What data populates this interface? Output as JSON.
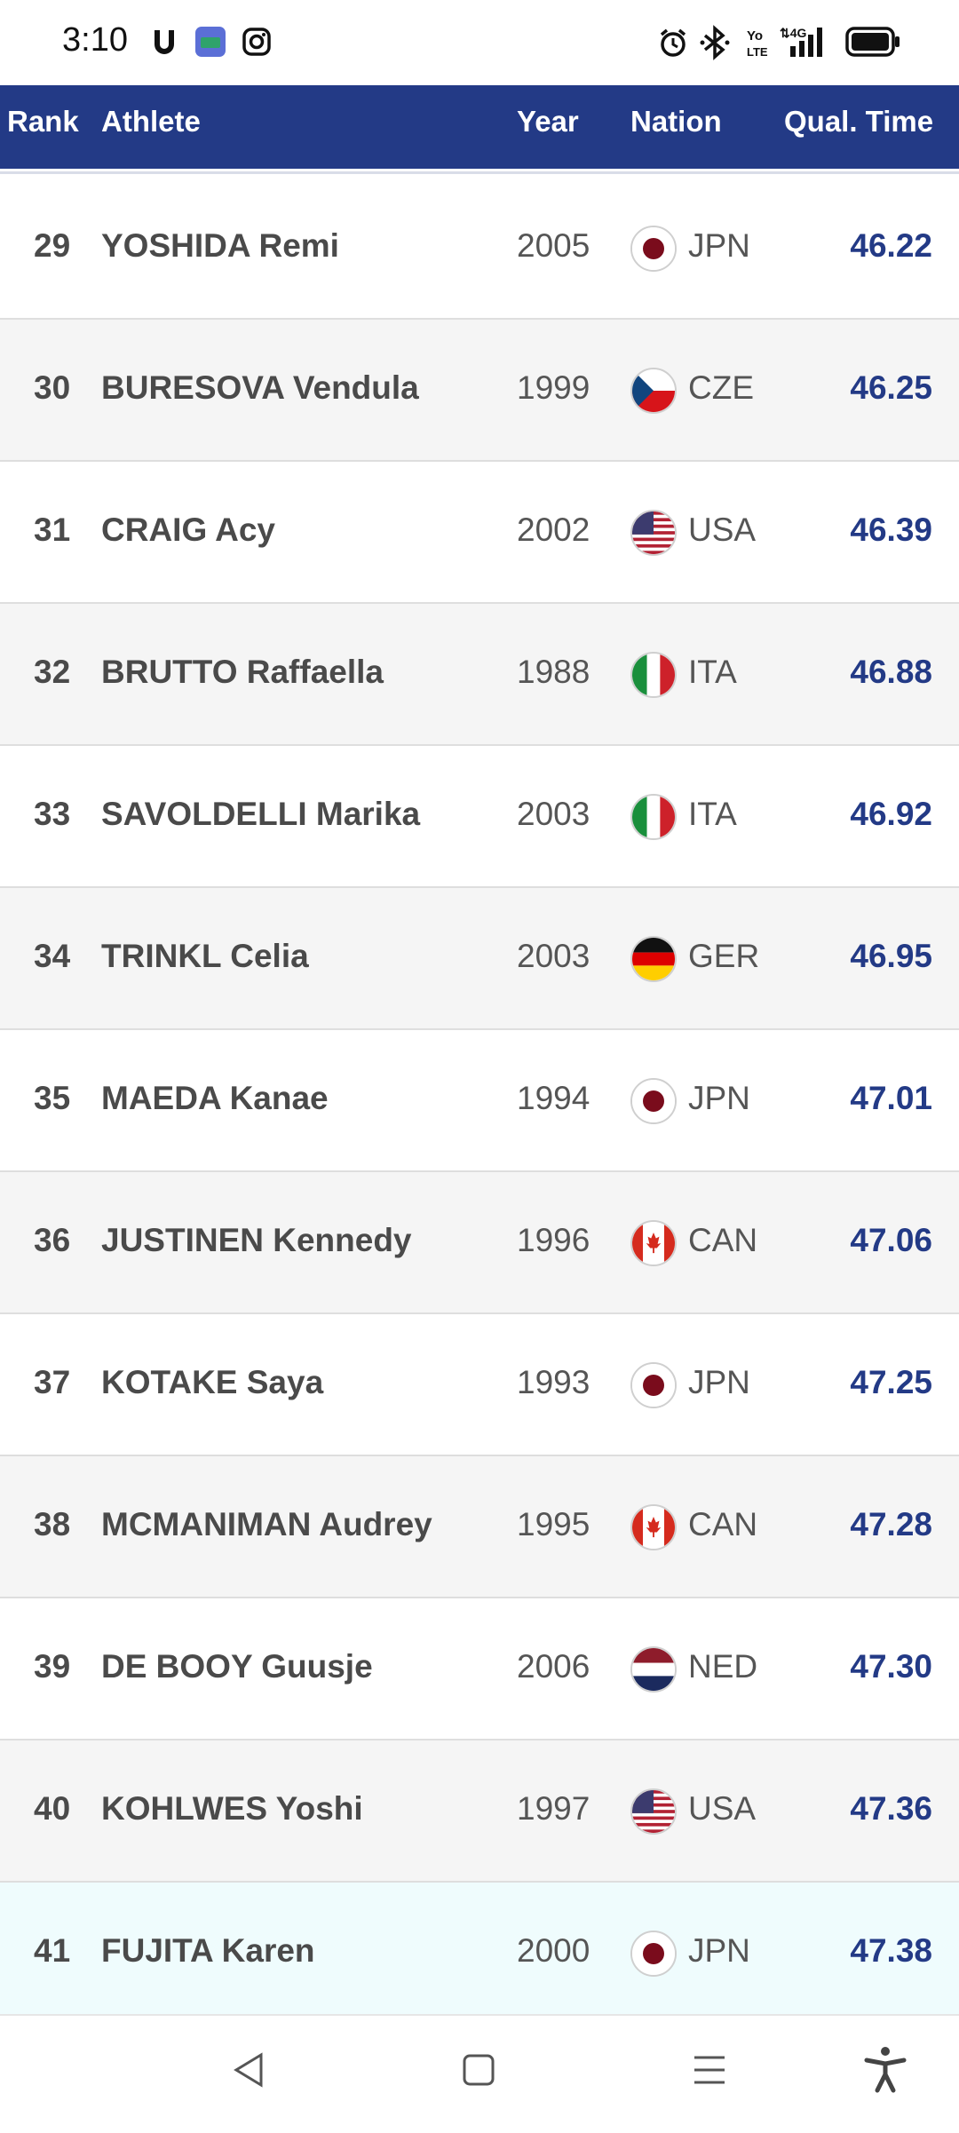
{
  "status_bar": {
    "time": "3:10"
  },
  "table": {
    "headers": {
      "rank": "Rank",
      "athlete": "Athlete",
      "year": "Year",
      "nation": "Nation",
      "qual_time": "Qual. Time"
    },
    "rows": [
      {
        "rank": "29",
        "athlete": "YOSHIDA Remi",
        "year": "2005",
        "nation": "JPN",
        "time": "46.22"
      },
      {
        "rank": "30",
        "athlete": "BURESOVA Vendula",
        "year": "1999",
        "nation": "CZE",
        "time": "46.25"
      },
      {
        "rank": "31",
        "athlete": "CRAIG Acy",
        "year": "2002",
        "nation": "USA",
        "time": "46.39"
      },
      {
        "rank": "32",
        "athlete": "BRUTTO Raffaella",
        "year": "1988",
        "nation": "ITA",
        "time": "46.88"
      },
      {
        "rank": "33",
        "athlete": "SAVOLDELLI Marika",
        "year": "2003",
        "nation": "ITA",
        "time": "46.92"
      },
      {
        "rank": "34",
        "athlete": "TRINKL Celia",
        "year": "2003",
        "nation": "GER",
        "time": "46.95"
      },
      {
        "rank": "35",
        "athlete": "MAEDA Kanae",
        "year": "1994",
        "nation": "JPN",
        "time": "47.01"
      },
      {
        "rank": "36",
        "athlete": "JUSTINEN Kennedy",
        "year": "1996",
        "nation": "CAN",
        "time": "47.06"
      },
      {
        "rank": "37",
        "athlete": "KOTAKE Saya",
        "year": "1993",
        "nation": "JPN",
        "time": "47.25"
      },
      {
        "rank": "38",
        "athlete": "MCMANIMAN Audrey",
        "year": "1995",
        "nation": "CAN",
        "time": "47.28"
      },
      {
        "rank": "39",
        "athlete": "DE BOOY Guusje",
        "year": "2006",
        "nation": "NED",
        "time": "47.30"
      },
      {
        "rank": "40",
        "athlete": "KOHLWES Yoshi",
        "year": "1997",
        "nation": "USA",
        "time": "47.36"
      },
      {
        "rank": "41",
        "athlete": "FUJITA Karen",
        "year": "2000",
        "nation": "JPN",
        "time": "47.38"
      }
    ]
  },
  "colors": {
    "header_bg": "#233a86",
    "time_text": "#233a86",
    "highlight_row": "#effcfd"
  },
  "nav_bar": {
    "icons": [
      "back-icon",
      "home-icon",
      "menu-icon",
      "accessibility-icon"
    ]
  }
}
